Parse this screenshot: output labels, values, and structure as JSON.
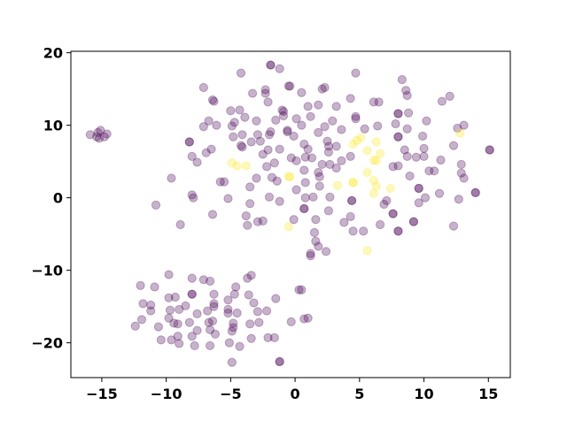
{
  "chart_data": {
    "type": "scatter",
    "title": "",
    "xlabel": "",
    "ylabel": "",
    "xlim": [
      -17.4,
      16.7
    ],
    "ylim": [
      -24.8,
      20.2
    ],
    "xticks": [
      -15,
      -10,
      -5,
      0,
      5,
      10,
      15
    ],
    "yticks": [
      -20,
      -10,
      0,
      10,
      20
    ],
    "xtick_labels": [
      "−15",
      "−10",
      "−5",
      "0",
      "5",
      "10",
      "15"
    ],
    "ytick_labels": [
      "−20",
      "−10",
      "0",
      "10",
      "20"
    ],
    "grid": false,
    "marker_alpha": 0.3,
    "colors": {
      "class_0": "#440154",
      "class_1": "#fde725"
    },
    "series": [
      {
        "class": 0,
        "color": "#440154",
        "points": [
          [
            -15.9,
            8.7
          ],
          [
            -15.3,
            9.0
          ],
          [
            -15.1,
            9.3
          ],
          [
            -14.6,
            8.8
          ],
          [
            -15.2,
            8.2
          ],
          [
            -14.8,
            8.4
          ],
          [
            -15.4,
            8.4
          ],
          [
            -1.9,
            18.3
          ],
          [
            -1.9,
            18.3
          ],
          [
            -1.2,
            17.8
          ],
          [
            -4.2,
            17.2
          ],
          [
            -7.1,
            15.2
          ],
          [
            -3.3,
            14.4
          ],
          [
            -2.3,
            14.9
          ],
          [
            -2.3,
            14.4
          ],
          [
            -2.1,
            13.2
          ],
          [
            -6.4,
            13.5
          ],
          [
            -6.3,
            13.3
          ],
          [
            -0.5,
            15.4
          ],
          [
            -5.0,
            12.0
          ],
          [
            -4.3,
            12.1
          ],
          [
            -3.9,
            11.1
          ],
          [
            -1.0,
            12.1
          ],
          [
            -0.9,
            11.3
          ],
          [
            -3.0,
            10.6
          ],
          [
            -1.5,
            10.7
          ],
          [
            -6.7,
            10.6
          ],
          [
            -7.1,
            9.8
          ],
          [
            -6.1,
            10.0
          ],
          [
            -4.9,
            9.9
          ],
          [
            -4.7,
            10.4
          ],
          [
            -1.9,
            9.1
          ],
          [
            -2.0,
            8.7
          ],
          [
            -0.6,
            9.1
          ],
          [
            -4.8,
            8.4
          ],
          [
            -4.1,
            8.7
          ],
          [
            -2.9,
            8.7
          ],
          [
            -3.4,
            7.7
          ],
          [
            -2.7,
            7.8
          ],
          [
            -4.2,
            7.2
          ],
          [
            -4.1,
            7.0
          ],
          [
            -8.2,
            7.7
          ],
          [
            -8.2,
            7.7
          ],
          [
            -6.5,
            6.7
          ],
          [
            -6.9,
            6.2
          ],
          [
            -8.0,
            5.7
          ],
          [
            -7.6,
            4.9
          ],
          [
            -2.5,
            6.0
          ],
          [
            -2.1,
            6.6
          ],
          [
            -1.2,
            6.7
          ],
          [
            -1.6,
            4.8
          ],
          [
            -2.2,
            4.3
          ],
          [
            -9.6,
            2.7
          ],
          [
            -5.8,
            2.2
          ],
          [
            -5.5,
            2.2
          ],
          [
            -3.0,
            2.7
          ],
          [
            -1.8,
            2.8
          ],
          [
            -1.4,
            2.3
          ],
          [
            -3.5,
            1.5
          ],
          [
            -8.0,
            0.4
          ],
          [
            -7.9,
            0.0
          ],
          [
            -5.2,
            -0.1
          ],
          [
            -2.0,
            0.1
          ],
          [
            -1.2,
            -0.5
          ],
          [
            -3.5,
            -0.8
          ],
          [
            -10.8,
            -1.0
          ],
          [
            -6.4,
            -2.3
          ],
          [
            -3.8,
            -2.5
          ],
          [
            -2.9,
            -3.3
          ],
          [
            -2.5,
            -3.2
          ],
          [
            -8.9,
            -3.7
          ],
          [
            -3.7,
            -3.8
          ],
          [
            4.7,
            17.2
          ],
          [
            -0.4,
            15.4
          ],
          [
            0.5,
            14.5
          ],
          [
            2.1,
            15.0
          ],
          [
            2.3,
            15.2
          ],
          [
            8.3,
            16.3
          ],
          [
            8.6,
            14.8
          ],
          [
            8.7,
            14.1
          ],
          [
            4.3,
            13.7
          ],
          [
            6.1,
            13.2
          ],
          [
            6.5,
            13.2
          ],
          [
            11.4,
            13.3
          ],
          [
            12.0,
            14.0
          ],
          [
            1.0,
            12.6
          ],
          [
            1.8,
            12.8
          ],
          [
            3.2,
            12.6
          ],
          [
            -0.9,
            11.9
          ],
          [
            1.2,
            11.2
          ],
          [
            0.1,
            10.9
          ],
          [
            0.5,
            10.0
          ],
          [
            2.9,
            10.6
          ],
          [
            2.3,
            9.8
          ],
          [
            4.7,
            11.2
          ],
          [
            4.7,
            10.9
          ],
          [
            8.0,
            11.6
          ],
          [
            8.0,
            11.6
          ],
          [
            8.8,
            11.7
          ],
          [
            10.2,
            10.6
          ],
          [
            7.8,
            10.2
          ],
          [
            -0.6,
            9.3
          ],
          [
            -0.1,
            8.5
          ],
          [
            1.8,
            9.0
          ],
          [
            3.6,
            9.4
          ],
          [
            5.4,
            9.5
          ],
          [
            6.4,
            9.9
          ],
          [
            8.7,
            9.5
          ],
          [
            8.0,
            8.4
          ],
          [
            8.0,
            8.4
          ],
          [
            9.9,
            8.5
          ],
          [
            12.6,
            9.6
          ],
          [
            13.1,
            10.0
          ],
          [
            12.3,
            7.2
          ],
          [
            15.1,
            6.6
          ],
          [
            15.1,
            6.6
          ],
          [
            0.7,
            7.4
          ],
          [
            1.0,
            6.7
          ],
          [
            2.5,
            7.8
          ],
          [
            2.6,
            7.1
          ],
          [
            2.6,
            6.3
          ],
          [
            3.2,
            7.1
          ],
          [
            8.5,
            6.6
          ],
          [
            10.0,
            6.8
          ],
          [
            8.7,
            5.7
          ],
          [
            9.4,
            5.6
          ],
          [
            10.0,
            5.7
          ],
          [
            -0.3,
            5.5
          ],
          [
            0.1,
            5.1
          ],
          [
            0.8,
            5.6
          ],
          [
            1.3,
            5.5
          ],
          [
            2.1,
            4.6
          ],
          [
            2.7,
            4.6
          ],
          [
            3.2,
            4.1
          ],
          [
            3.6,
            5.1
          ],
          [
            4.3,
            5.7
          ],
          [
            11.3,
            5.2
          ],
          [
            12.9,
            4.6
          ],
          [
            7.6,
            4.3
          ],
          [
            8.0,
            4.4
          ],
          [
            12.9,
            3.4
          ],
          [
            13.1,
            2.7
          ],
          [
            10.4,
            3.7
          ],
          [
            10.8,
            3.7
          ],
          [
            0.7,
            3.8
          ],
          [
            1.8,
            3.5
          ],
          [
            1.9,
            2.9
          ],
          [
            8.9,
            3.0
          ],
          [
            0.8,
            2.1
          ],
          [
            0.1,
            1.1
          ],
          [
            1.9,
            1.6
          ],
          [
            9.6,
            1.3
          ],
          [
            9.6,
            1.3
          ],
          [
            14.0,
            0.7
          ],
          [
            14.0,
            0.7
          ],
          [
            11.2,
            0.6
          ],
          [
            12.7,
            -0.2
          ],
          [
            10.1,
            0.0
          ],
          [
            9.6,
            -0.7
          ],
          [
            0.8,
            0.0
          ],
          [
            1.4,
            0.1
          ],
          [
            2.7,
            0.1
          ],
          [
            4.4,
            -0.4
          ],
          [
            4.4,
            -0.4
          ],
          [
            7.1,
            -0.4
          ],
          [
            6.9,
            -0.9
          ],
          [
            0.7,
            -1.5
          ],
          [
            0.7,
            -1.5
          ],
          [
            2.6,
            -1.8
          ],
          [
            7.6,
            -2.2
          ],
          [
            7.6,
            -2.2
          ],
          [
            9.2,
            -3.3
          ],
          [
            9.2,
            -3.3
          ],
          [
            -0.1,
            -3.0
          ],
          [
            1.6,
            -3.0
          ],
          [
            4.3,
            -2.6
          ],
          [
            3.8,
            -3.4
          ],
          [
            6.6,
            -3.7
          ],
          [
            12.3,
            -3.9
          ],
          [
            4.5,
            -4.6
          ],
          [
            5.3,
            -4.6
          ],
          [
            8.0,
            -4.6
          ],
          [
            8.0,
            -4.6
          ],
          [
            1.5,
            -4.8
          ],
          [
            1.6,
            -6.0
          ],
          [
            1.8,
            -6.7
          ],
          [
            2.4,
            -7.4
          ],
          [
            1.2,
            -7.7
          ],
          [
            1.2,
            -8.0
          ],
          [
            -9.8,
            -10.6
          ],
          [
            -8.0,
            -11.1
          ],
          [
            -7.1,
            -11.3
          ],
          [
            -6.6,
            -11.5
          ],
          [
            -3.7,
            -11.1
          ],
          [
            -3.4,
            -10.7
          ],
          [
            -12.0,
            -12.1
          ],
          [
            -10.9,
            -12.3
          ],
          [
            -8.0,
            -13.3
          ],
          [
            -8.0,
            -13.3
          ],
          [
            -9.8,
            -13.8
          ],
          [
            -9.3,
            -13.7
          ],
          [
            -6.3,
            -13.3
          ],
          [
            -4.6,
            -12.3
          ],
          [
            -4.7,
            -13.3
          ],
          [
            -3.6,
            -13.4
          ],
          [
            -5.2,
            -14.1
          ],
          [
            -3.2,
            -14.5
          ],
          [
            -1.5,
            -13.9
          ],
          [
            0.3,
            -12.7
          ],
          [
            0.5,
            -12.7
          ],
          [
            -11.8,
            -14.6
          ],
          [
            -11.2,
            -14.8
          ],
          [
            -11.2,
            -15.6
          ],
          [
            -9.7,
            -15.5
          ],
          [
            -9.0,
            -15.4
          ],
          [
            -8.5,
            -14.9
          ],
          [
            -7.6,
            -16.0
          ],
          [
            -6.8,
            -15.6
          ],
          [
            -6.3,
            -14.6
          ],
          [
            -6.3,
            -15.0
          ],
          [
            -5.2,
            -15.4
          ],
          [
            -5.2,
            -15.9
          ],
          [
            -4.5,
            -15.9
          ],
          [
            -2.9,
            -15.7
          ],
          [
            -2.2,
            -15.6
          ],
          [
            -11.9,
            -16.8
          ],
          [
            -12.4,
            -17.7
          ],
          [
            -10.6,
            -17.8
          ],
          [
            -9.8,
            -16.6
          ],
          [
            -9.4,
            -17.3
          ],
          [
            -9.1,
            -17.4
          ],
          [
            -8.2,
            -17.2
          ],
          [
            -7.6,
            -18.3
          ],
          [
            -6.7,
            -17.2
          ],
          [
            -6.4,
            -17.0
          ],
          [
            -6.6,
            -18.2
          ],
          [
            -6.2,
            -18.8
          ],
          [
            -4.8,
            -17.3
          ],
          [
            -4.8,
            -17.9
          ],
          [
            -4.9,
            -18.4
          ],
          [
            -3.5,
            -17.4
          ],
          [
            -2.8,
            -17.2
          ],
          [
            -0.3,
            -17.1
          ],
          [
            0.7,
            -16.7
          ],
          [
            1.0,
            -16.6
          ],
          [
            -10.4,
            -19.6
          ],
          [
            -9.6,
            -19.6
          ],
          [
            -9.1,
            -19.1
          ],
          [
            -9.0,
            -20.1
          ],
          [
            -8.0,
            -19.1
          ],
          [
            -7.8,
            -20.4
          ],
          [
            -6.6,
            -20.4
          ],
          [
            -5.1,
            -20.0
          ],
          [
            -4.3,
            -20.5
          ],
          [
            -3.4,
            -19.4
          ],
          [
            -2.1,
            -19.3
          ],
          [
            -1.6,
            -19.3
          ],
          [
            -4.9,
            -22.7
          ],
          [
            -1.2,
            -22.6
          ],
          [
            -1.2,
            -22.6
          ]
        ]
      },
      {
        "class": 1,
        "color": "#fde725",
        "points": [
          [
            -4.9,
            4.8
          ],
          [
            -4.5,
            4.4
          ],
          [
            -3.8,
            4.4
          ],
          [
            -0.5,
            2.9
          ],
          [
            -0.5,
            -4.0
          ],
          [
            4.5,
            7.4
          ],
          [
            4.8,
            7.9
          ],
          [
            5.1,
            8.3
          ],
          [
            6.3,
            7.7
          ],
          [
            5.6,
            6.5
          ],
          [
            6.6,
            6.1
          ],
          [
            6.1,
            5.2
          ],
          [
            6.3,
            5.1
          ],
          [
            12.8,
            8.9
          ],
          [
            5.6,
            3.5
          ],
          [
            4.5,
            2.1
          ],
          [
            4.5,
            2.1
          ],
          [
            3.3,
            1.7
          ],
          [
            6.1,
            2.4
          ],
          [
            6.3,
            1.6
          ],
          [
            6.1,
            0.6
          ],
          [
            7.4,
            1.3
          ],
          [
            -0.4,
            2.9
          ],
          [
            5.6,
            -7.3
          ]
        ]
      }
    ]
  }
}
